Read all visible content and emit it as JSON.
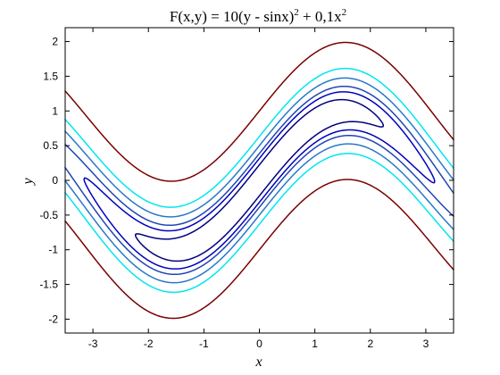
{
  "chart_data": {
    "type": "contour",
    "title": {
      "main": "F(x,y) = 10(y - sinx)",
      "sup1": "2",
      "mid": " + 0,1x",
      "sup2": "2"
    },
    "xlabel": "x",
    "ylabel": "y",
    "xlim": [
      -3.5,
      3.5
    ],
    "ylim": [
      -2.2,
      2.2
    ],
    "xticks": [
      -3,
      -2,
      -1,
      0,
      1,
      2,
      3
    ],
    "xtick_labels": [
      "-3",
      "-2",
      "-1",
      "0",
      "1",
      "2",
      "3"
    ],
    "yticks": [
      -2,
      -1.5,
      -1,
      -0.5,
      0,
      0.5,
      1,
      1.5,
      2
    ],
    "ytick_labels": [
      "-2",
      "-1.5",
      "-1",
      "-0.5",
      "0",
      "0.5",
      "1",
      "1.5",
      "2"
    ],
    "grid": false,
    "function": "F(x,y) = 10(y - sinx)^2 + 0.1x^2",
    "levels": [
      {
        "value": 0.5,
        "color": "#000080"
      },
      {
        "value": 1.0,
        "color": "#0000c0"
      },
      {
        "value": 1.5,
        "color": "#1e46b4"
      },
      {
        "value": 2.5,
        "color": "#2878c8"
      },
      {
        "value": 4.0,
        "color": "#00e6f0"
      },
      {
        "value": 10.0,
        "color": "#7a0000"
      }
    ]
  }
}
